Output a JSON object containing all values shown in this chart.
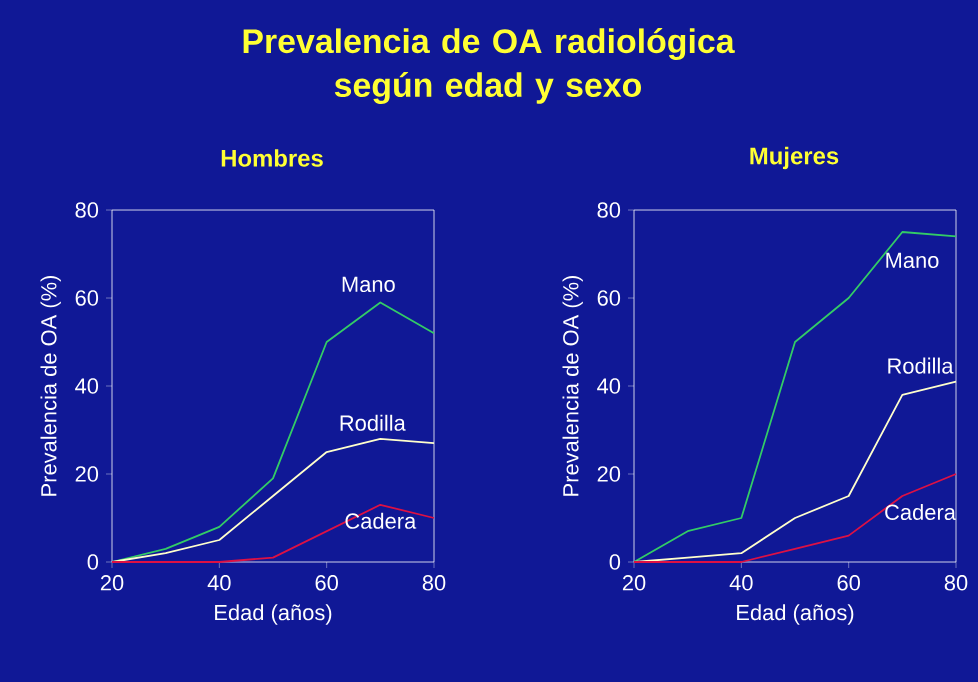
{
  "chart_data": [
    {
      "type": "line",
      "title": "Prevalencia de OA radiológica según edad y sexo",
      "subtitle": "Hombres",
      "xlabel": "Edad (años)",
      "ylabel": "Prevalencia de OA (%)",
      "x": [
        20,
        30,
        40,
        50,
        60,
        70,
        80
      ],
      "xlim": [
        20,
        80
      ],
      "xticks": [
        20,
        40,
        60,
        80
      ],
      "ylim": [
        0,
        80
      ],
      "yticks": [
        0,
        20,
        40,
        60,
        80
      ],
      "series": [
        {
          "name": "Mano",
          "color": "#33cc66",
          "values": [
            0,
            3,
            8,
            19,
            50,
            59,
            52
          ]
        },
        {
          "name": "Rodilla",
          "color": "#ffffcc",
          "values": [
            0,
            2,
            5,
            15,
            25,
            28,
            27
          ]
        },
        {
          "name": "Cadera",
          "color": "#dd1144",
          "values": [
            0,
            0,
            0,
            1,
            7,
            13,
            10
          ]
        }
      ]
    },
    {
      "type": "line",
      "subtitle": "Mujeres",
      "xlabel": "Edad (años)",
      "ylabel": "Prevalencia de OA (%)",
      "x": [
        20,
        30,
        40,
        50,
        60,
        70,
        80
      ],
      "xlim": [
        20,
        80
      ],
      "xticks": [
        20,
        40,
        60,
        80
      ],
      "ylim": [
        0,
        80
      ],
      "yticks": [
        0,
        20,
        40,
        60,
        80
      ],
      "series": [
        {
          "name": "Mano",
          "color": "#33cc66",
          "values": [
            0,
            7,
            10,
            50,
            60,
            75,
            74
          ]
        },
        {
          "name": "Rodilla",
          "color": "#ffffcc",
          "values": [
            0,
            1,
            2,
            10,
            15,
            38,
            41
          ]
        },
        {
          "name": "Cadera",
          "color": "#dd1144",
          "values": [
            0,
            0,
            0,
            3,
            6,
            15,
            20
          ]
        }
      ]
    }
  ]
}
